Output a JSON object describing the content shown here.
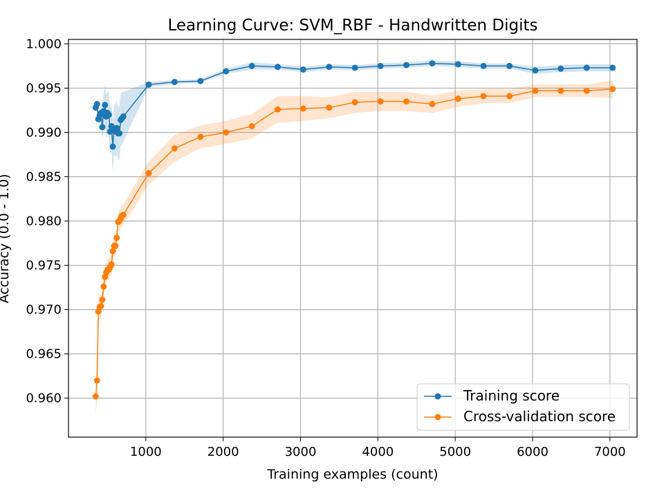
{
  "chart_data": {
    "type": "line",
    "title": "Learning Curve: SVM_RBF - Handwritten Digits",
    "xlabel": "Training examples (count)",
    "ylabel": "Accuracy (0.0 - 1.0)",
    "xlim": [
      0,
      7350
    ],
    "ylim": [
      0.9556,
      1.0005
    ],
    "xticks": [
      1000,
      2000,
      3000,
      4000,
      5000,
      6000,
      7000
    ],
    "yticks": [
      0.96,
      0.965,
      0.97,
      0.975,
      0.98,
      0.985,
      0.99,
      0.995,
      1.0
    ],
    "grid": true,
    "legend_position": "bottom-right",
    "series": [
      {
        "name": "Training score",
        "color": "#1f77b4",
        "marker": "circle",
        "points": [
          [
            352,
            0.9928
          ],
          [
            369,
            0.9932
          ],
          [
            386,
            0.9915
          ],
          [
            403,
            0.9919
          ],
          [
            420,
            0.9922
          ],
          [
            437,
            0.9906
          ],
          [
            454,
            0.9924
          ],
          [
            471,
            0.9931
          ],
          [
            488,
            0.9918
          ],
          [
            505,
            0.9922
          ],
          [
            522,
            0.992
          ],
          [
            539,
            0.9901
          ],
          [
            556,
            0.9907
          ],
          [
            573,
            0.9884
          ],
          [
            590,
            0.9904
          ],
          [
            607,
            0.9901
          ],
          [
            624,
            0.9905
          ],
          [
            641,
            0.9899
          ],
          [
            658,
            0.9899
          ],
          [
            675,
            0.9914
          ],
          [
            692,
            0.9916
          ],
          [
            709,
            0.9918
          ],
          [
            1037,
            0.9954
          ],
          [
            1372,
            0.9957
          ],
          [
            1706,
            0.9958
          ],
          [
            2036,
            0.9969
          ],
          [
            2371,
            0.9975
          ],
          [
            2705,
            0.9974
          ],
          [
            3034,
            0.9971
          ],
          [
            3369,
            0.9974
          ],
          [
            3704,
            0.9973
          ],
          [
            4033,
            0.9975
          ],
          [
            4368,
            0.9976
          ],
          [
            4702,
            0.9978
          ],
          [
            5037,
            0.9977
          ],
          [
            5366,
            0.9975
          ],
          [
            5701,
            0.9975
          ],
          [
            6035,
            0.997
          ],
          [
            6365,
            0.9972
          ],
          [
            6699,
            0.9973
          ],
          [
            7034,
            0.9973
          ]
        ],
        "band_halfwidth": [
          0.0003,
          0.0003,
          0.0005,
          0.0006,
          0.001,
          0.0014,
          0.0019,
          0.0022,
          0.0024,
          0.0025,
          0.0025,
          0.0026,
          0.0027,
          0.0029,
          0.0029,
          0.0029,
          0.003,
          0.003,
          0.003,
          0.003,
          0.003,
          0.0028,
          0.0003,
          0.0002,
          0.0002,
          0.0003,
          0.0004,
          0.0003,
          0.0003,
          0.0003,
          0.0003,
          0.0003,
          0.0003,
          0.0003,
          0.0003,
          0.0003,
          0.0003,
          0.0004,
          0.0004,
          0.0004,
          0.0004
        ]
      },
      {
        "name": "Cross-validation score",
        "color": "#ff7f0e",
        "marker": "circle",
        "points": [
          [
            352,
            0.9602
          ],
          [
            369,
            0.962
          ],
          [
            386,
            0.9698
          ],
          [
            403,
            0.9703
          ],
          [
            420,
            0.9704
          ],
          [
            437,
            0.9711
          ],
          [
            454,
            0.9726
          ],
          [
            471,
            0.9737
          ],
          [
            488,
            0.9742
          ],
          [
            505,
            0.9745
          ],
          [
            522,
            0.9745
          ],
          [
            539,
            0.9748
          ],
          [
            556,
            0.9751
          ],
          [
            573,
            0.9766
          ],
          [
            590,
            0.9772
          ],
          [
            607,
            0.9772
          ],
          [
            624,
            0.9781
          ],
          [
            641,
            0.9799
          ],
          [
            658,
            0.98
          ],
          [
            675,
            0.9803
          ],
          [
            692,
            0.9806
          ],
          [
            709,
            0.9807
          ],
          [
            1037,
            0.9854
          ],
          [
            1372,
            0.9882
          ],
          [
            1706,
            0.9895
          ],
          [
            2036,
            0.99
          ],
          [
            2371,
            0.9907
          ],
          [
            2705,
            0.9926
          ],
          [
            3034,
            0.9927
          ],
          [
            3369,
            0.9928
          ],
          [
            3704,
            0.9934
          ],
          [
            4033,
            0.9935
          ],
          [
            4368,
            0.9935
          ],
          [
            4702,
            0.9932
          ],
          [
            5037,
            0.9938
          ],
          [
            5366,
            0.9941
          ],
          [
            5701,
            0.9941
          ],
          [
            6035,
            0.9947
          ],
          [
            6365,
            0.9947
          ],
          [
            6699,
            0.9947
          ],
          [
            7034,
            0.9949
          ]
        ],
        "band_halfwidth": [
          0.002,
          0.0025,
          0.002,
          0.0015,
          0.0012,
          0.0012,
          0.0012,
          0.0012,
          0.0012,
          0.0012,
          0.0012,
          0.0012,
          0.0012,
          0.0012,
          0.0012,
          0.0012,
          0.0012,
          0.0012,
          0.0012,
          0.0012,
          0.0012,
          0.0012,
          0.0013,
          0.0015,
          0.0013,
          0.0013,
          0.0014,
          0.0015,
          0.0014,
          0.0012,
          0.0012,
          0.0011,
          0.0011,
          0.001,
          0.0009,
          0.0008,
          0.0008,
          0.0007,
          0.0007,
          0.0007,
          0.001
        ]
      }
    ]
  }
}
